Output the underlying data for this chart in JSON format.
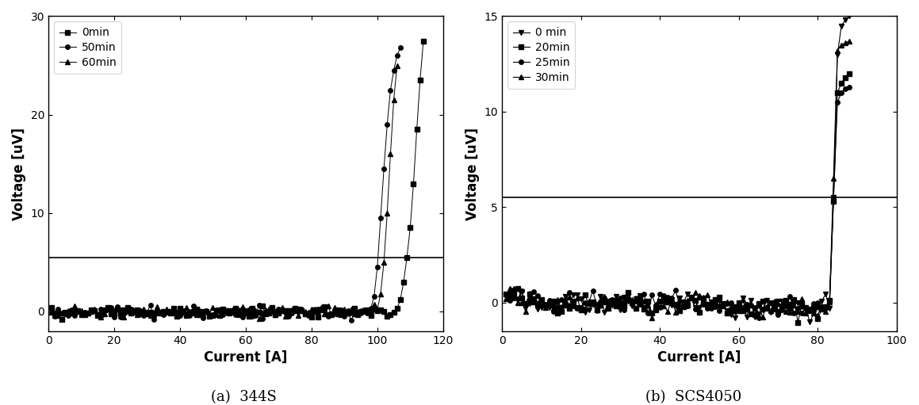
{
  "fig_width": 11.59,
  "fig_height": 5.11,
  "dpi": 100,
  "subplot_a": {
    "title": "(a)  344S",
    "xlabel": "Current [A]",
    "ylabel": "Voltage [uV]",
    "xlim": [
      0,
      120
    ],
    "ylim": [
      -2,
      30
    ],
    "xticks": [
      0,
      20,
      40,
      60,
      80,
      100,
      120
    ],
    "yticks": [
      0,
      10,
      20,
      30
    ],
    "hline_y": 5.5
  },
  "subplot_b": {
    "title": "(b)  SCS4050",
    "xlabel": "Current [A]",
    "ylabel": "Voltage [uV]",
    "xlim": [
      0,
      100
    ],
    "ylim": [
      -1.5,
      15
    ],
    "xticks": [
      0,
      20,
      40,
      60,
      80,
      100
    ],
    "yticks": [
      0,
      5,
      10,
      15
    ],
    "hline_y": 5.5
  }
}
